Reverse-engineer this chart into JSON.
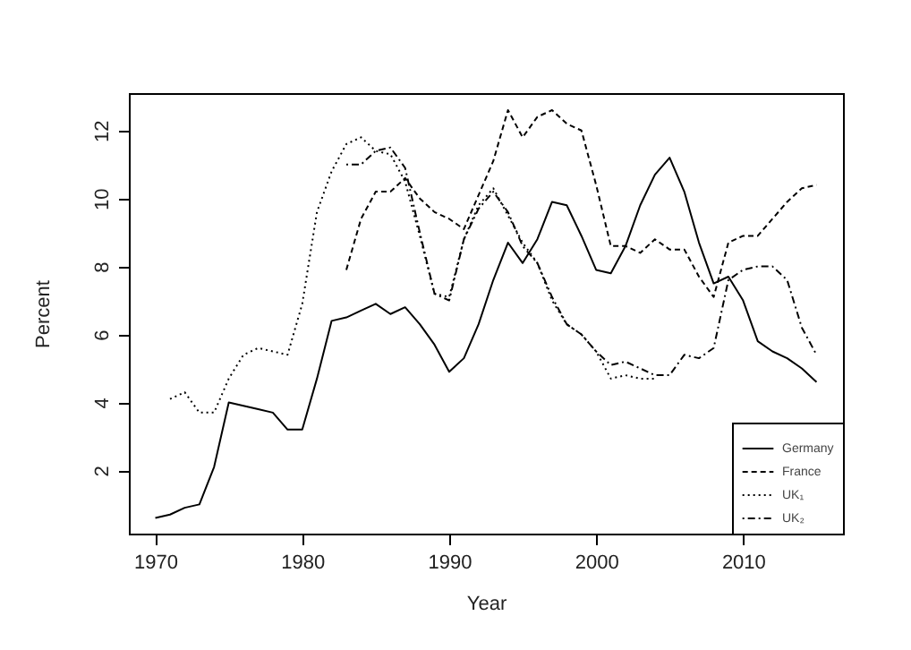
{
  "chart_data": {
    "type": "line",
    "xlabel": "Year",
    "ylabel": "Percent",
    "x": [
      1970,
      1971,
      1972,
      1973,
      1974,
      1975,
      1976,
      1977,
      1978,
      1979,
      1980,
      1981,
      1982,
      1983,
      1984,
      1985,
      1986,
      1987,
      1988,
      1989,
      1990,
      1991,
      1992,
      1993,
      1994,
      1995,
      1996,
      1997,
      1998,
      1999,
      2000,
      2001,
      2002,
      2003,
      2004,
      2005,
      2006,
      2007,
      2008,
      2009,
      2010,
      2011,
      2012,
      2013,
      2014,
      2015
    ],
    "series": [
      {
        "name": "Germany",
        "color": "#000000",
        "line_style": "solid",
        "values": [
          0.6,
          0.7,
          0.9,
          1.0,
          2.1,
          4.0,
          3.9,
          3.8,
          3.7,
          3.2,
          3.2,
          4.7,
          6.4,
          6.5,
          6.7,
          6.9,
          6.6,
          6.8,
          6.3,
          5.7,
          4.9,
          5.3,
          6.3,
          7.6,
          8.7,
          8.1,
          8.8,
          9.9,
          9.8,
          8.9,
          7.9,
          7.8,
          8.6,
          9.8,
          10.7,
          11.2,
          10.2,
          8.7,
          7.5,
          7.7,
          7.0,
          5.8,
          5.5,
          5.3,
          5.0,
          4.6
        ]
      },
      {
        "name": "France",
        "color": "#000000",
        "line_style": "dashed",
        "values": [
          null,
          null,
          null,
          null,
          null,
          null,
          null,
          null,
          null,
          null,
          null,
          null,
          null,
          7.9,
          9.4,
          10.2,
          10.2,
          10.6,
          10.0,
          9.6,
          9.4,
          9.1,
          10.1,
          11.1,
          12.6,
          11.8,
          12.4,
          12.6,
          12.2,
          12.0,
          10.4,
          8.6,
          8.6,
          8.4,
          8.8,
          8.5,
          8.5,
          7.7,
          7.1,
          8.7,
          8.9,
          8.9,
          9.4,
          9.9,
          10.3,
          10.4
        ]
      },
      {
        "name": "UK₁",
        "color": "#000000",
        "line_style": "dotted",
        "values": [
          null,
          4.1,
          4.3,
          3.7,
          3.7,
          4.7,
          5.4,
          5.6,
          5.5,
          5.4,
          6.9,
          9.6,
          10.8,
          11.6,
          11.8,
          11.4,
          11.3,
          10.5,
          8.9,
          7.2,
          7.1,
          8.8,
          9.8,
          10.3,
          9.5,
          8.7,
          8.1,
          7.0,
          6.3,
          6.0,
          5.5,
          4.7,
          4.8,
          4.7,
          4.7,
          null,
          null,
          null,
          null,
          null,
          null,
          null,
          null,
          null,
          null,
          null
        ]
      },
      {
        "name": "UK₂",
        "color": "#000000",
        "line_style": "dashdot",
        "values": [
          null,
          null,
          null,
          null,
          null,
          null,
          null,
          null,
          null,
          null,
          null,
          null,
          null,
          11.0,
          11.0,
          11.4,
          11.5,
          10.9,
          9.0,
          7.2,
          7.0,
          8.8,
          9.7,
          10.2,
          9.6,
          8.6,
          8.1,
          7.1,
          6.3,
          6.0,
          5.5,
          5.1,
          5.2,
          5.0,
          4.8,
          4.8,
          5.4,
          5.3,
          5.6,
          7.6,
          7.9,
          8.0,
          8.0,
          7.6,
          6.2,
          5.4
        ]
      }
    ],
    "xlim": [
      1968.2,
      2016.8
    ],
    "xticks": [
      1970,
      1980,
      1990,
      2000,
      2010
    ],
    "ylim": [
      0.14,
      13.1
    ],
    "yticks": [
      2,
      4,
      6,
      8,
      10,
      12
    ],
    "grid": false,
    "legend": "bottom right"
  }
}
